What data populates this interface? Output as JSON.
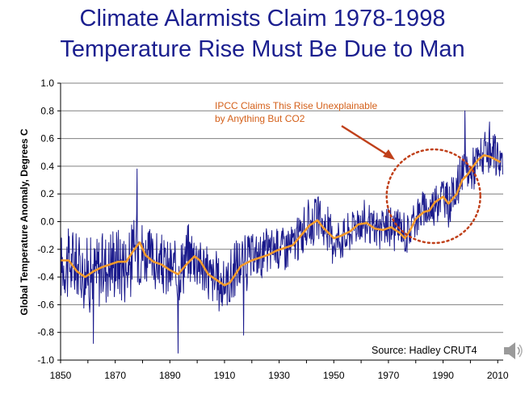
{
  "slide": {
    "title_line1": "Climate Alarmists Claim 1978-1998",
    "title_line2": "Temperature Rise Must Be Due to Man",
    "title_color": "#1b1f8f",
    "speaker_icon": "speaker-icon"
  },
  "chart_data": {
    "type": "line",
    "title": "",
    "xlabel": "",
    "ylabel": "Global Temperature Anomaly, Degrees C",
    "xlim": [
      1850,
      2012
    ],
    "ylim": [
      -1.0,
      1.0
    ],
    "x_ticks": [
      "1850",
      "1870",
      "1890",
      "1910",
      "1930",
      "1950",
      "1970",
      "1990",
      "2010"
    ],
    "y_ticks": [
      "1.0",
      "0.8",
      "0.6",
      "0.4",
      "0.2",
      "0.0",
      "-0.2",
      "-0.4",
      "-0.6",
      "-0.8",
      "-1.0"
    ],
    "grid": "horizontal",
    "source": "Source:  Hadley  CRUT4",
    "annotation": {
      "line1": "IPCC Claims This Rise Unexplainable",
      "line2": "by Anything But CO2",
      "color": "#d4601a",
      "circled_range": [
        1975,
        1998
      ]
    },
    "series": [
      {
        "kind": "monthly",
        "color": "#1a1a8c",
        "envelope": [
          [
            1850,
            -0.3
          ],
          [
            1855,
            -0.3
          ],
          [
            1860,
            -0.38
          ],
          [
            1865,
            -0.33
          ],
          [
            1870,
            -0.27
          ],
          [
            1875,
            -0.32
          ],
          [
            1878,
            -0.15
          ],
          [
            1880,
            -0.22
          ],
          [
            1885,
            -0.3
          ],
          [
            1890,
            -0.35
          ],
          [
            1893,
            -0.36
          ],
          [
            1897,
            -0.22
          ],
          [
            1900,
            -0.25
          ],
          [
            1905,
            -0.4
          ],
          [
            1909,
            -0.46
          ],
          [
            1912,
            -0.42
          ],
          [
            1915,
            -0.3
          ],
          [
            1920,
            -0.27
          ],
          [
            1925,
            -0.22
          ],
          [
            1930,
            -0.17
          ],
          [
            1935,
            -0.17
          ],
          [
            1940,
            -0.04
          ],
          [
            1944,
            0.03
          ],
          [
            1947,
            -0.05
          ],
          [
            1950,
            -0.13
          ],
          [
            1955,
            -0.1
          ],
          [
            1958,
            0.0
          ],
          [
            1962,
            -0.01
          ],
          [
            1965,
            -0.07
          ],
          [
            1970,
            -0.04
          ],
          [
            1975,
            -0.05
          ],
          [
            1977,
            -0.1
          ],
          [
            1980,
            0.05
          ],
          [
            1983,
            0.08
          ],
          [
            1985,
            0.08
          ],
          [
            1988,
            0.17
          ],
          [
            1990,
            0.2
          ],
          [
            1992,
            0.12
          ],
          [
            1995,
            0.25
          ],
          [
            1998,
            0.38
          ],
          [
            2000,
            0.35
          ],
          [
            2003,
            0.46
          ],
          [
            2005,
            0.48
          ],
          [
            2007,
            0.46
          ],
          [
            2010,
            0.47
          ],
          [
            2012,
            0.42
          ]
        ],
        "peaks": [
          [
            1878,
            0.38
          ],
          [
            1998,
            0.8
          ],
          [
            2007,
            0.72
          ],
          [
            1893,
            -0.95
          ],
          [
            1917,
            -0.82
          ],
          [
            1862,
            -0.88
          ]
        ]
      },
      {
        "kind": "smoothed",
        "color": "#f39a2a",
        "x": [
          1850,
          1853,
          1856,
          1859,
          1862,
          1865,
          1868,
          1871,
          1874,
          1877,
          1879,
          1881,
          1884,
          1887,
          1890,
          1893,
          1896,
          1899,
          1901,
          1904,
          1907,
          1910,
          1912,
          1914,
          1916,
          1918,
          1920,
          1923,
          1926,
          1929,
          1932,
          1935,
          1938,
          1941,
          1944,
          1946,
          1948,
          1950,
          1953,
          1956,
          1959,
          1962,
          1965,
          1968,
          1971,
          1974,
          1976,
          1978,
          1980,
          1983,
          1985,
          1987,
          1990,
          1992,
          1995,
          1997,
          1999,
          2001,
          2003,
          2005,
          2007,
          2009,
          2011
        ],
        "y": [
          -0.28,
          -0.28,
          -0.36,
          -0.4,
          -0.36,
          -0.33,
          -0.31,
          -0.29,
          -0.29,
          -0.2,
          -0.15,
          -0.24,
          -0.29,
          -0.31,
          -0.35,
          -0.38,
          -0.31,
          -0.25,
          -0.28,
          -0.38,
          -0.42,
          -0.46,
          -0.44,
          -0.38,
          -0.32,
          -0.3,
          -0.28,
          -0.26,
          -0.24,
          -0.21,
          -0.19,
          -0.17,
          -0.1,
          -0.03,
          0.01,
          -0.04,
          -0.08,
          -0.12,
          -0.1,
          -0.07,
          -0.02,
          -0.01,
          -0.05,
          -0.06,
          -0.04,
          -0.08,
          -0.12,
          -0.06,
          0.02,
          0.07,
          0.08,
          0.14,
          0.18,
          0.13,
          0.2,
          0.3,
          0.34,
          0.4,
          0.45,
          0.48,
          0.47,
          0.45,
          0.43
        ]
      }
    ]
  }
}
